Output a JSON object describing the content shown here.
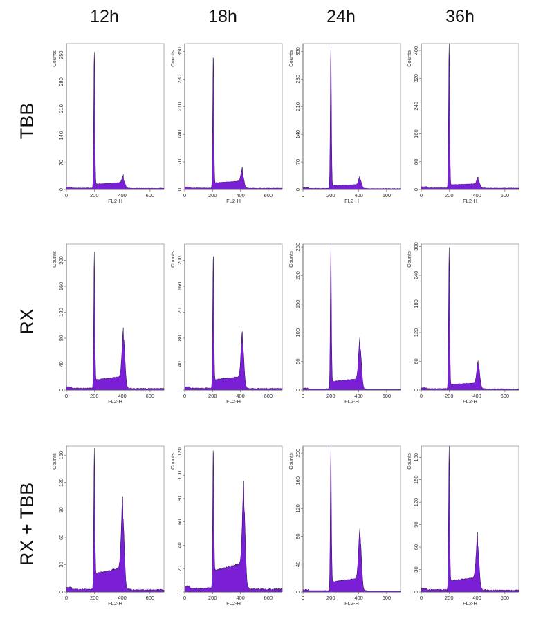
{
  "figure": {
    "columns": [
      "12h",
      "18h",
      "24h",
      "36h"
    ],
    "rows": [
      "TBB",
      "RX",
      "RX + TBB"
    ]
  },
  "colors": {
    "fill": "#7a1fd6",
    "edge": "#2b1250",
    "frame": "#9a9a9a"
  },
  "chart_data": [
    {
      "type": "area",
      "row": "TBB",
      "column": "12h",
      "xlabel": "FL2-H",
      "ylabel": "Counts",
      "xlim": [
        0,
        700
      ],
      "xticks": [
        0,
        200,
        400,
        600
      ],
      "ylim": [
        0,
        380
      ],
      "yticks": [
        0,
        70,
        140,
        210,
        280,
        350
      ],
      "peaks": [
        {
          "x": 200,
          "y": 365
        },
        {
          "x": 410,
          "y": 20
        }
      ],
      "plateau": 12,
      "base": 4
    },
    {
      "type": "area",
      "row": "TBB",
      "column": "18h",
      "xlabel": "FL2-H",
      "ylabel": "Counts",
      "xlim": [
        0,
        700
      ],
      "xticks": [
        0,
        200,
        400,
        600
      ],
      "ylim": [
        0,
        370
      ],
      "yticks": [
        0,
        70,
        140,
        210,
        280,
        350
      ],
      "peaks": [
        {
          "x": 205,
          "y": 345
        },
        {
          "x": 415,
          "y": 33
        }
      ],
      "plateau": 15,
      "base": 4
    },
    {
      "type": "area",
      "row": "TBB",
      "column": "24h",
      "xlabel": "FL2-H",
      "ylabel": "Counts",
      "xlim": [
        0,
        700
      ],
      "xticks": [
        0,
        200,
        400,
        600
      ],
      "ylim": [
        0,
        370
      ],
      "yticks": [
        0,
        70,
        140,
        210,
        280,
        350
      ],
      "peaks": [
        {
          "x": 200,
          "y": 360
        },
        {
          "x": 410,
          "y": 22
        }
      ],
      "plateau": 8,
      "base": 3
    },
    {
      "type": "area",
      "row": "TBB",
      "column": "36h",
      "xlabel": "FL2-H",
      "ylabel": "Counts",
      "xlim": [
        0,
        700
      ],
      "xticks": [
        0,
        200,
        400,
        600
      ],
      "ylim": [
        0,
        420
      ],
      "yticks": [
        0,
        80,
        160,
        240,
        320,
        400
      ],
      "peaks": [
        {
          "x": 200,
          "y": 410
        },
        {
          "x": 410,
          "y": 20
        }
      ],
      "plateau": 10,
      "base": 5
    },
    {
      "type": "area",
      "row": "RX",
      "column": "12h",
      "xlabel": "FL2-H",
      "ylabel": "Counts",
      "xlim": [
        0,
        700
      ],
      "xticks": [
        0,
        200,
        400,
        600
      ],
      "ylim": [
        0,
        225
      ],
      "yticks": [
        0,
        40,
        80,
        120,
        160,
        200
      ],
      "peaks": [
        {
          "x": 200,
          "y": 205
        },
        {
          "x": 410,
          "y": 75
        }
      ],
      "plateau": 15,
      "base": 3
    },
    {
      "type": "area",
      "row": "RX",
      "column": "18h",
      "xlabel": "FL2-H",
      "ylabel": "Counts",
      "xlim": [
        0,
        700
      ],
      "xticks": [
        0,
        200,
        400,
        600
      ],
      "ylim": [
        0,
        225
      ],
      "yticks": [
        0,
        40,
        80,
        120,
        160,
        200
      ],
      "peaks": [
        {
          "x": 205,
          "y": 210
        },
        {
          "x": 415,
          "y": 70
        }
      ],
      "plateau": 15,
      "base": 3
    },
    {
      "type": "area",
      "row": "RX",
      "column": "24h",
      "xlabel": "FL2-H",
      "ylabel": "Counts",
      "xlim": [
        0,
        700
      ],
      "xticks": [
        0,
        200,
        400,
        600
      ],
      "ylim": [
        0,
        255
      ],
      "yticks": [
        0,
        50,
        100,
        150,
        200,
        250
      ],
      "peaks": [
        {
          "x": 200,
          "y": 245
        },
        {
          "x": 410,
          "y": 72
        }
      ],
      "plateau": 15,
      "base": 2
    },
    {
      "type": "area",
      "row": "RX",
      "column": "36h",
      "xlabel": "FL2-H",
      "ylabel": "Counts",
      "xlim": [
        0,
        700
      ],
      "xticks": [
        0,
        200,
        400,
        600
      ],
      "ylim": [
        0,
        305
      ],
      "yticks": [
        0,
        60,
        120,
        180,
        240,
        300
      ],
      "peaks": [
        {
          "x": 200,
          "y": 300
        },
        {
          "x": 410,
          "y": 50
        }
      ],
      "plateau": 10,
      "base": 3
    },
    {
      "type": "area",
      "row": "RX + TBB",
      "column": "12h",
      "xlabel": "FL2-H",
      "ylabel": "Counts",
      "xlim": [
        0,
        700
      ],
      "xticks": [
        0,
        200,
        400,
        600
      ],
      "ylim": [
        0,
        160
      ],
      "yticks": [
        0,
        30,
        60,
        90,
        120,
        150
      ],
      "peaks": [
        {
          "x": 200,
          "y": 155
        },
        {
          "x": 405,
          "y": 80
        }
      ],
      "plateau": 20,
      "base": 3
    },
    {
      "type": "area",
      "row": "RX + TBB",
      "column": "18h",
      "xlabel": "FL2-H",
      "ylabel": "Counts",
      "xlim": [
        0,
        700
      ],
      "xticks": [
        0,
        200,
        400,
        600
      ],
      "ylim": [
        0,
        125
      ],
      "yticks": [
        0,
        20,
        40,
        60,
        80,
        100,
        120
      ],
      "peaks": [
        {
          "x": 205,
          "y": 118
        },
        {
          "x": 425,
          "y": 70
        }
      ],
      "plateau": 18,
      "base": 3
    },
    {
      "type": "area",
      "row": "RX + TBB",
      "column": "24h",
      "xlabel": "FL2-H",
      "ylabel": "Counts",
      "xlim": [
        0,
        700
      ],
      "xticks": [
        0,
        200,
        400,
        600
      ],
      "ylim": [
        0,
        210
      ],
      "yticks": [
        0,
        40,
        80,
        120,
        160,
        200
      ],
      "peaks": [
        {
          "x": 200,
          "y": 205
        },
        {
          "x": 410,
          "y": 75
        }
      ],
      "plateau": 15,
      "base": 2
    },
    {
      "type": "area",
      "row": "RX + TBB",
      "column": "36h",
      "xlabel": "FL2-H",
      "ylabel": "Counts",
      "xlim": [
        0,
        700
      ],
      "xticks": [
        0,
        200,
        400,
        600
      ],
      "ylim": [
        0,
        195
      ],
      "yticks": [
        0,
        30,
        60,
        90,
        120,
        150,
        180
      ],
      "peaks": [
        {
          "x": 200,
          "y": 190
        },
        {
          "x": 405,
          "y": 58
        }
      ],
      "plateau": 14,
      "base": 3
    }
  ]
}
